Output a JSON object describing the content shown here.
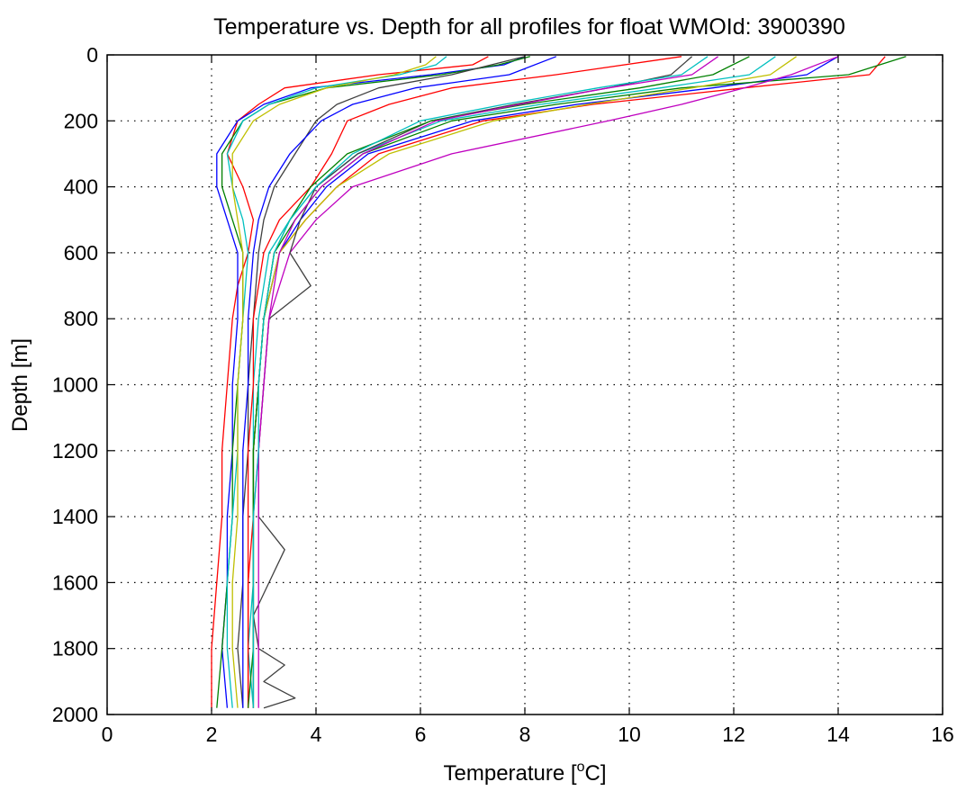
{
  "chart_data": {
    "type": "line",
    "title": "Temperature vs. Depth for all profiles for float WMOId: 3900390",
    "xlabel": {
      "main": "Temperature [",
      "sup": "o",
      "tail": "C]"
    },
    "ylabel": "Depth [m]",
    "xlim": [
      0,
      16
    ],
    "ylim": [
      0,
      2000
    ],
    "y_reversed": true,
    "x_ticks": [
      0,
      2,
      4,
      6,
      8,
      10,
      12,
      14,
      16
    ],
    "y_ticks": [
      0,
      200,
      400,
      600,
      800,
      1000,
      1200,
      1400,
      1600,
      1800,
      2000
    ],
    "x_tick_labels": [
      "0",
      "2",
      "4",
      "6",
      "8",
      "10",
      "12",
      "14",
      "16"
    ],
    "y_tick_labels": [
      "0",
      "200",
      "400",
      "600",
      "800",
      "1000",
      "1200",
      "1400",
      "1600",
      "1800",
      "2000"
    ],
    "grid": true,
    "series": [
      {
        "color": "#ff0000",
        "depth": [
          5,
          60,
          100,
          150,
          200,
          300,
          400,
          500,
          600,
          800,
          1000,
          1200,
          1400,
          1600,
          1800,
          1980
        ],
        "temp": [
          14.9,
          14.6,
          12.2,
          9.3,
          7.2,
          5.2,
          4.4,
          3.8,
          3.3,
          3.0,
          2.9,
          2.8,
          2.8,
          2.7,
          2.7,
          2.7
        ]
      },
      {
        "color": "#0000ff",
        "depth": [
          5,
          60,
          100,
          150,
          200,
          300,
          400,
          500,
          600,
          800,
          1000,
          1200,
          1400,
          1600,
          1800,
          1980
        ],
        "temp": [
          14.0,
          13.4,
          11.6,
          9.0,
          7.0,
          5.0,
          4.2,
          3.7,
          3.3,
          3.0,
          2.9,
          2.8,
          2.8,
          2.8,
          2.8,
          2.8
        ]
      },
      {
        "color": "#008000",
        "depth": [
          5,
          60,
          100,
          150,
          200,
          300,
          400,
          500,
          600,
          800,
          1000,
          1200,
          1400,
          1600,
          1800,
          1980
        ],
        "temp": [
          15.3,
          14.2,
          11.0,
          8.6,
          6.6,
          4.9,
          4.1,
          3.6,
          3.2,
          3.0,
          2.9,
          2.8,
          2.8,
          2.8,
          2.8,
          2.8
        ]
      },
      {
        "color": "#00bfbf",
        "depth": [
          5,
          60,
          100,
          150,
          200,
          300,
          400,
          500,
          600,
          800,
          1000,
          1200,
          1400,
          1600,
          1800,
          1980
        ],
        "temp": [
          12.8,
          12.3,
          10.6,
          8.3,
          6.4,
          4.8,
          4.0,
          3.5,
          3.1,
          2.9,
          2.8,
          2.8,
          2.8,
          2.8,
          2.7,
          2.8
        ]
      },
      {
        "color": "#bf00bf",
        "depth": [
          5,
          60,
          100,
          150,
          200,
          300,
          400,
          500,
          600,
          800,
          1000,
          1200,
          1400,
          1600,
          1800,
          1980
        ],
        "temp": [
          14.0,
          13.1,
          12.2,
          11.0,
          9.6,
          6.6,
          4.7,
          4.0,
          3.5,
          3.1,
          3.0,
          2.9,
          2.8,
          2.8,
          2.8,
          2.8
        ]
      },
      {
        "color": "#bfbf00",
        "depth": [
          5,
          60,
          100,
          150,
          200,
          300,
          400,
          500,
          600,
          800,
          1000,
          1200,
          1400,
          1600,
          1800,
          1980
        ],
        "temp": [
          13.2,
          12.7,
          11.2,
          9.2,
          7.4,
          5.4,
          4.4,
          3.8,
          3.3,
          3.0,
          2.9,
          2.8,
          2.8,
          2.8,
          2.8,
          2.8
        ]
      },
      {
        "color": "#404040",
        "depth": [
          5,
          60,
          100,
          150,
          200,
          300,
          400,
          500,
          600,
          700,
          800,
          1000,
          1200,
          1400,
          1500,
          1600,
          1700,
          1800,
          1850,
          1900,
          1950,
          1980
        ],
        "temp": [
          11.2,
          10.8,
          9.6,
          7.8,
          6.2,
          4.8,
          4.0,
          3.7,
          3.5,
          3.9,
          3.1,
          3.0,
          2.9,
          2.9,
          3.4,
          3.1,
          2.8,
          2.9,
          3.4,
          3.0,
          3.6,
          3.0
        ]
      },
      {
        "color": "#ff0000",
        "depth": [
          5,
          30,
          60,
          100,
          150,
          200,
          300,
          400,
          500,
          600,
          700,
          800,
          1000,
          1200,
          1400,
          1600,
          1800,
          1980
        ],
        "temp": [
          7.3,
          7.0,
          5.2,
          3.4,
          2.9,
          2.5,
          2.3,
          2.6,
          2.8,
          2.7,
          2.5,
          2.4,
          2.3,
          2.2,
          2.2,
          2.1,
          2.0,
          2.0
        ]
      },
      {
        "color": "#0000ff",
        "depth": [
          5,
          30,
          60,
          100,
          150,
          200,
          300,
          400,
          500,
          600,
          800,
          1000,
          1200,
          1400,
          1600,
          1800,
          1980
        ],
        "temp": [
          8.0,
          7.6,
          6.2,
          3.9,
          3.0,
          2.5,
          2.1,
          2.1,
          2.3,
          2.5,
          2.5,
          2.4,
          2.4,
          2.3,
          2.3,
          2.2,
          2.3
        ]
      },
      {
        "color": "#008000",
        "depth": [
          5,
          30,
          60,
          100,
          150,
          200,
          300,
          400,
          500,
          600,
          800,
          1000,
          1200,
          1400,
          1600,
          1800,
          1980
        ],
        "temp": [
          8.1,
          7.5,
          6.4,
          4.2,
          3.1,
          2.6,
          2.2,
          2.2,
          2.4,
          2.6,
          2.6,
          2.5,
          2.4,
          2.4,
          2.3,
          2.2,
          2.1
        ]
      },
      {
        "color": "#00bfbf",
        "depth": [
          5,
          30,
          60,
          100,
          150,
          200,
          300,
          400,
          500,
          600,
          800,
          1000,
          1200,
          1400,
          1600,
          1800,
          1980
        ],
        "temp": [
          6.5,
          6.3,
          5.6,
          4.0,
          3.1,
          2.6,
          2.3,
          2.4,
          2.6,
          2.7,
          2.6,
          2.5,
          2.5,
          2.4,
          2.3,
          2.3,
          2.4
        ]
      },
      {
        "color": "#bfbf00",
        "depth": [
          5,
          30,
          60,
          100,
          150,
          200,
          300,
          400,
          500,
          600,
          800,
          1000,
          1200,
          1400,
          1600,
          1800,
          1980
        ],
        "temp": [
          6.3,
          6.1,
          5.5,
          4.2,
          3.3,
          2.8,
          2.4,
          2.4,
          2.5,
          2.6,
          2.6,
          2.5,
          2.5,
          2.5,
          2.4,
          2.4,
          2.5
        ]
      },
      {
        "color": "#404040",
        "depth": [
          5,
          60,
          100,
          150,
          200,
          300,
          400,
          500,
          600,
          800,
          1000,
          1200,
          1400,
          1600,
          1800,
          1980
        ],
        "temp": [
          8.0,
          6.6,
          5.2,
          4.4,
          4.0,
          3.6,
          3.2,
          3.0,
          2.9,
          2.8,
          2.7,
          2.7,
          2.6,
          2.6,
          2.5,
          2.6
        ]
      },
      {
        "color": "#0000ff",
        "depth": [
          5,
          60,
          100,
          150,
          200,
          300,
          400,
          500,
          600,
          800,
          1000,
          1200,
          1400,
          1600,
          1800,
          1980
        ],
        "temp": [
          8.6,
          7.7,
          5.9,
          4.7,
          4.1,
          3.5,
          3.1,
          2.9,
          2.8,
          2.7,
          2.7,
          2.6,
          2.6,
          2.6,
          2.6,
          2.6
        ]
      },
      {
        "color": "#ff0000",
        "depth": [
          5,
          60,
          100,
          150,
          200,
          300,
          400,
          500,
          600,
          800,
          1000,
          1200,
          1400,
          1600,
          1800,
          1980
        ],
        "temp": [
          11.0,
          8.6,
          6.6,
          5.4,
          4.6,
          4.3,
          3.9,
          3.3,
          3.0,
          2.8,
          2.8,
          2.7,
          2.7,
          2.7,
          2.7,
          2.7
        ]
      },
      {
        "color": "#008000",
        "depth": [
          5,
          60,
          100,
          150,
          200,
          300,
          400,
          500,
          600,
          800,
          1000,
          1200,
          1400,
          1600,
          1800,
          1980
        ],
        "temp": [
          12.3,
          11.6,
          10.2,
          8.0,
          6.2,
          4.6,
          3.9,
          3.5,
          3.2,
          3.0,
          2.9,
          2.8,
          2.8,
          2.8,
          2.8,
          2.7
        ]
      },
      {
        "color": "#bf00bf",
        "depth": [
          5,
          60,
          100,
          150,
          200,
          300,
          400,
          500,
          600,
          800,
          1000,
          1200,
          1400,
          1600,
          1800,
          1980
        ],
        "temp": [
          11.7,
          11.2,
          9.6,
          7.9,
          6.3,
          4.9,
          4.1,
          3.6,
          3.3,
          3.1,
          3.0,
          2.9,
          2.9,
          2.9,
          2.9,
          2.9
        ]
      },
      {
        "color": "#00bfbf",
        "depth": [
          5,
          60,
          100,
          150,
          200,
          300,
          400,
          500,
          600,
          800,
          1000,
          1200,
          1400,
          1600,
          1800,
          1980
        ],
        "temp": [
          11.5,
          11.0,
          9.4,
          7.6,
          6.0,
          4.7,
          4.0,
          3.5,
          3.2,
          3.0,
          2.9,
          2.9,
          2.8,
          2.8,
          2.8,
          2.8
        ]
      }
    ]
  }
}
